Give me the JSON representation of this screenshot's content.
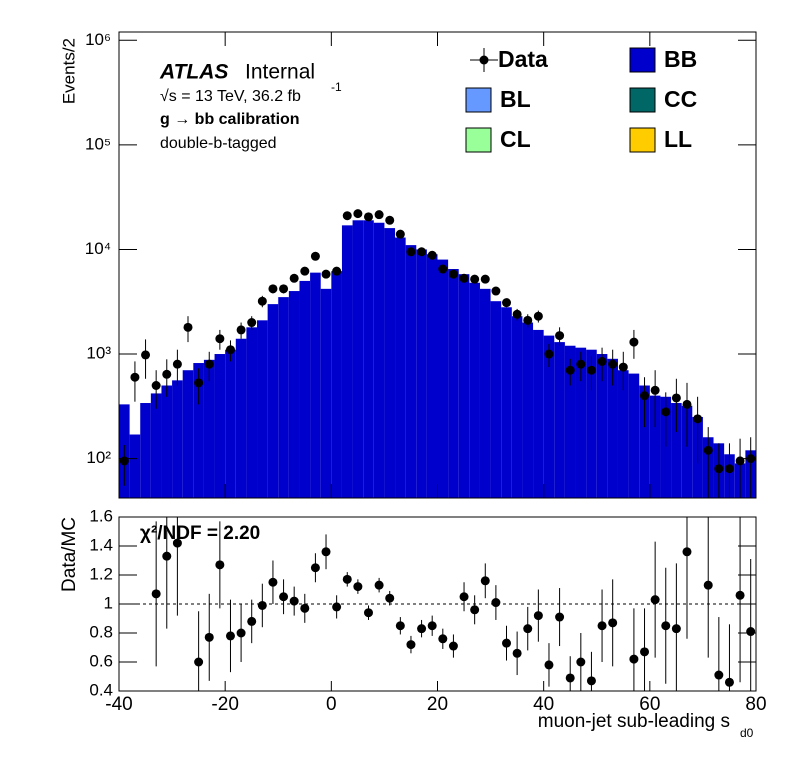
{
  "chart_data": [
    {
      "type": "histogram",
      "log_scale": true,
      "experiment": "ATLAS",
      "status": "Internal",
      "energy_label": "√s = 13 TeV, 36.2 fb",
      "lumi_exponent": "-1",
      "process_label": "g → bb calibration",
      "selection_label": "double-b-tagged",
      "ylabel": "Events/2",
      "xlim": [
        -40,
        80
      ],
      "ylim": [
        42,
        1200000
      ],
      "yticks": [
        {
          "value": 100,
          "label": "10²"
        },
        {
          "value": 1000,
          "label": "10³"
        },
        {
          "value": 10000,
          "label": "10⁴"
        },
        {
          "value": 100000,
          "label": "10⁵"
        },
        {
          "value": 1000000,
          "label": "10⁶"
        }
      ],
      "bins": [
        -40,
        -38,
        -36,
        -34,
        -32,
        -30,
        -28,
        -26,
        -24,
        -22,
        -20,
        -18,
        -16,
        -14,
        -12,
        -10,
        -8,
        -6,
        -4,
        -2,
        0,
        2,
        4,
        6,
        8,
        10,
        12,
        14,
        16,
        18,
        20,
        22,
        24,
        26,
        28,
        30,
        32,
        34,
        36,
        38,
        40,
        42,
        44,
        46,
        48,
        50,
        52,
        54,
        56,
        58,
        60,
        62,
        64,
        66,
        68,
        70,
        72,
        74,
        76,
        78,
        80
      ],
      "series": [
        {
          "name": "BB",
          "color": "#0000cc",
          "values": [
            330,
            170,
            340,
            420,
            500,
            560,
            700,
            820,
            880,
            1000,
            1100,
            1400,
            1800,
            2100,
            3000,
            3500,
            4000,
            5000,
            6000,
            4200,
            6200,
            17000,
            19000,
            19000,
            18000,
            16000,
            13000,
            11000,
            10000,
            9000,
            8000,
            6500,
            5800,
            4800,
            4200,
            3200,
            2800,
            2300,
            2000,
            1700,
            1500,
            1300,
            1200,
            1150,
            1100,
            1000,
            900,
            700,
            650,
            500,
            400,
            390,
            340,
            320,
            250,
            160,
            140,
            110,
            90,
            120
          ]
        },
        {
          "name": "BL",
          "color": "#6699ff",
          "values": [
            0,
            0,
            0,
            0,
            0,
            0,
            0,
            0,
            0,
            0,
            0,
            0,
            0,
            0,
            0,
            0,
            0,
            0,
            0,
            0,
            0,
            0,
            0,
            0,
            0,
            0,
            0,
            0,
            0,
            0,
            0,
            0,
            0,
            0,
            0,
            0,
            0,
            0,
            0,
            0,
            0,
            0,
            0,
            0,
            0,
            0,
            0,
            0,
            0,
            0,
            0,
            0,
            0,
            0,
            0,
            0,
            0,
            0,
            0,
            0
          ]
        },
        {
          "name": "CC",
          "color": "#006666",
          "values": [
            0,
            0,
            0,
            0,
            0,
            0,
            0,
            0,
            0,
            0,
            0,
            0,
            0,
            0,
            0,
            0,
            0,
            0,
            0,
            0,
            0,
            0,
            0,
            0,
            0,
            0,
            0,
            0,
            0,
            0,
            0,
            0,
            0,
            0,
            0,
            0,
            0,
            0,
            0,
            0,
            0,
            0,
            0,
            0,
            0,
            0,
            0,
            0,
            0,
            0,
            0,
            0,
            0,
            0,
            0,
            0,
            0,
            0,
            0,
            0
          ]
        },
        {
          "name": "CL",
          "color": "#99ff99",
          "values": [
            0,
            0,
            0,
            0,
            0,
            0,
            0,
            0,
            0,
            0,
            0,
            0,
            0,
            0,
            0,
            0,
            0,
            0,
            0,
            0,
            0,
            0,
            0,
            0,
            0,
            0,
            0,
            0,
            0,
            0,
            0,
            0,
            0,
            0,
            0,
            0,
            0,
            0,
            0,
            0,
            0,
            0,
            0,
            0,
            0,
            0,
            0,
            0,
            0,
            0,
            0,
            0,
            0,
            0,
            0,
            0,
            0,
            0,
            0,
            0
          ]
        },
        {
          "name": "LL",
          "color": "#ffcc00",
          "values": [
            0,
            0,
            0,
            0,
            0,
            0,
            0,
            0,
            0,
            0,
            0,
            0,
            0,
            0,
            0,
            0,
            0,
            0,
            0,
            0,
            0,
            0,
            0,
            0,
            0,
            0,
            0,
            0,
            0,
            0,
            0,
            0,
            0,
            0,
            0,
            0,
            0,
            0,
            0,
            0,
            0,
            0,
            0,
            0,
            0,
            0,
            0,
            0,
            0,
            0,
            0,
            0,
            0,
            0,
            0,
            0,
            0,
            0,
            0,
            0
          ]
        }
      ],
      "data": {
        "name": "Data",
        "color": "#000000",
        "values": [
          95,
          600,
          980,
          500,
          640,
          800,
          1800,
          530,
          800,
          1400,
          1100,
          1700,
          2000,
          3200,
          4200,
          4200,
          5300,
          6200,
          8600,
          5800,
          6200,
          21000,
          22000,
          20500,
          21500,
          19000,
          14000,
          9500,
          9500,
          8800,
          6500,
          5800,
          5300,
          5200,
          5200,
          4000,
          3100,
          2400,
          2100,
          2300,
          1000,
          1500,
          700,
          800,
          700,
          850,
          800,
          750,
          1300,
          400,
          450,
          280,
          380,
          330,
          240,
          120,
          80,
          80,
          95,
          100
        ],
        "errors": [
          40,
          250,
          400,
          200,
          250,
          300,
          500,
          200,
          250,
          300,
          250,
          300,
          300,
          400,
          400,
          400,
          400,
          400,
          500,
          400,
          400,
          800,
          800,
          800,
          800,
          700,
          600,
          500,
          500,
          500,
          400,
          400,
          400,
          400,
          400,
          350,
          300,
          300,
          300,
          300,
          250,
          300,
          200,
          250,
          250,
          300,
          300,
          300,
          400,
          200,
          250,
          150,
          200,
          200,
          150,
          80,
          60,
          60,
          60,
          60
        ]
      }
    },
    {
      "type": "scatter",
      "ylabel": "Data/MC",
      "xlabel": "muon-jet sub-leading s",
      "xlabel_sub": "d0",
      "annotation": "χ²/NDF = 2.20",
      "reference_line": 1,
      "xlim": [
        -40,
        80
      ],
      "xticks": [
        -40,
        -20,
        0,
        20,
        40,
        60,
        80
      ],
      "ylim": [
        0.4,
        1.6
      ],
      "yticks": [
        0.4,
        0.6,
        0.8,
        1,
        1.2,
        1.4,
        1.6
      ],
      "x": [
        -39,
        -37,
        -35,
        -33,
        -31,
        -29,
        -27,
        -25,
        -23,
        -21,
        -19,
        -17,
        -15,
        -13,
        -11,
        -9,
        -7,
        -5,
        -3,
        -1,
        1,
        3,
        5,
        7,
        9,
        11,
        13,
        15,
        17,
        19,
        21,
        23,
        25,
        27,
        29,
        31,
        33,
        35,
        37,
        39,
        41,
        43,
        45,
        47,
        49,
        51,
        53,
        55,
        57,
        59,
        61,
        63,
        65,
        67,
        69,
        71,
        73,
        75,
        77,
        79
      ],
      "values": [
        null,
        null,
        null,
        1.07,
        1.33,
        1.42,
        null,
        0.6,
        0.77,
        1.27,
        0.78,
        0.8,
        0.88,
        0.99,
        1.15,
        1.05,
        1.02,
        0.97,
        1.25,
        1.36,
        0.98,
        1.17,
        1.12,
        0.94,
        1.13,
        1.04,
        0.85,
        0.72,
        0.83,
        0.85,
        0.76,
        0.71,
        1.05,
        0.96,
        1.16,
        1.01,
        0.73,
        0.66,
        0.83,
        0.92,
        0.58,
        0.91,
        0.49,
        0.6,
        0.47,
        0.85,
        0.87,
        null,
        0.62,
        0.67,
        1.03,
        0.85,
        0.83,
        1.36,
        null,
        1.13,
        0.51,
        0.46,
        1.06,
        0.81
      ],
      "errors": [
        null,
        null,
        null,
        0.5,
        0.5,
        0.5,
        null,
        0.35,
        0.3,
        0.3,
        0.25,
        0.2,
        0.15,
        0.15,
        0.15,
        0.12,
        0.1,
        0.1,
        0.1,
        0.12,
        0.08,
        0.05,
        0.05,
        0.05,
        0.05,
        0.05,
        0.06,
        0.06,
        0.06,
        0.07,
        0.07,
        0.08,
        0.1,
        0.1,
        0.12,
        0.12,
        0.12,
        0.15,
        0.15,
        0.18,
        0.15,
        0.2,
        0.15,
        0.2,
        0.2,
        0.25,
        0.3,
        null,
        0.35,
        0.3,
        0.4,
        0.4,
        0.45,
        0.6,
        null,
        0.5,
        0.4,
        0.4,
        0.6,
        0.5
      ]
    }
  ]
}
